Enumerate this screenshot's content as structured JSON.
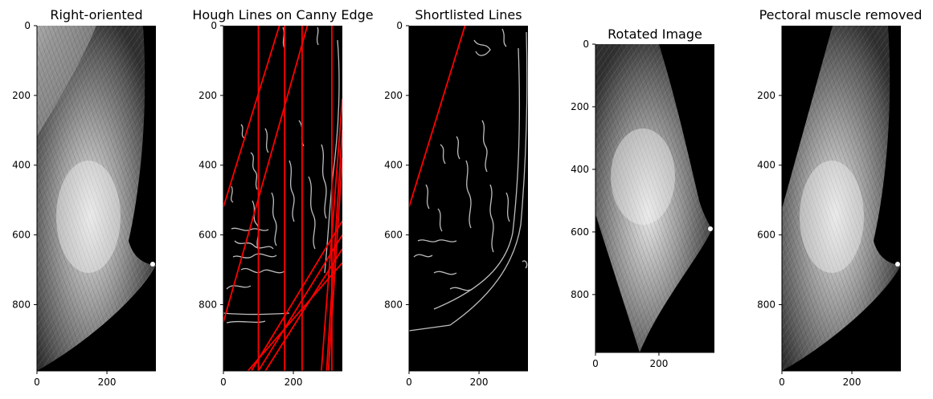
{
  "figure": {
    "panels": [
      {
        "id": "right-oriented",
        "title": "Right-oriented",
        "kind": "mammogram",
        "xlim": [
          0,
          340
        ],
        "ylim": [
          0,
          990
        ],
        "y_ticks": [
          "0",
          "200",
          "400",
          "600",
          "800"
        ],
        "x_ticks": [
          "0",
          "200"
        ]
      },
      {
        "id": "hough",
        "title": "Hough Lines on Canny Edge",
        "kind": "edges-with-lines",
        "xlim": [
          0,
          340
        ],
        "ylim": [
          0,
          990
        ],
        "y_ticks": [
          "0",
          "200",
          "400",
          "600",
          "800"
        ],
        "x_ticks": [
          "0",
          "200"
        ],
        "line_color": "#ff0000",
        "lines": [
          {
            "x1": 0,
            "y1": 520,
            "x2": 160,
            "y2": 0
          },
          {
            "x1": 0,
            "y1": 850,
            "x2": 240,
            "y2": 0
          },
          {
            "x1": 100,
            "y1": 0,
            "x2": 100,
            "y2": 990
          },
          {
            "x1": 175,
            "y1": 0,
            "x2": 175,
            "y2": 990
          },
          {
            "x1": 225,
            "y1": 0,
            "x2": 225,
            "y2": 990
          },
          {
            "x1": 310,
            "y1": 0,
            "x2": 310,
            "y2": 990
          },
          {
            "x1": 80,
            "y1": 990,
            "x2": 340,
            "y2": 560
          },
          {
            "x1": 100,
            "y1": 990,
            "x2": 340,
            "y2": 600
          },
          {
            "x1": 120,
            "y1": 990,
            "x2": 340,
            "y2": 640
          },
          {
            "x1": 70,
            "y1": 990,
            "x2": 340,
            "y2": 680
          },
          {
            "x1": 280,
            "y1": 990,
            "x2": 340,
            "y2": 210
          },
          {
            "x1": 295,
            "y1": 990,
            "x2": 340,
            "y2": 300
          },
          {
            "x1": 300,
            "y1": 990,
            "x2": 340,
            "y2": 380
          }
        ]
      },
      {
        "id": "shortlisted",
        "title": "Shortlisted Lines",
        "kind": "edges-with-lines",
        "xlim": [
          0,
          340
        ],
        "ylim": [
          0,
          990
        ],
        "y_ticks": [
          "0",
          "200",
          "400",
          "600",
          "800"
        ],
        "x_ticks": [
          "0",
          "200"
        ],
        "line_color": "#ff0000",
        "lines": [
          {
            "x1": 0,
            "y1": 520,
            "x2": 160,
            "y2": 0
          }
        ]
      },
      {
        "id": "rotated",
        "title": "Rotated Image",
        "kind": "rotated-mammogram",
        "xlim": [
          0,
          375
        ],
        "ylim": [
          0,
          985
        ],
        "y_ticks": [
          "0",
          "200",
          "400",
          "600",
          "800"
        ],
        "x_ticks": [
          "0",
          "200"
        ]
      },
      {
        "id": "pectoral-removed",
        "title": "Pectoral muscle removed",
        "kind": "mammogram-cropped",
        "xlim": [
          0,
          340
        ],
        "ylim": [
          0,
          990
        ],
        "y_ticks": [
          "200",
          "400",
          "600",
          "800"
        ],
        "x_ticks": [
          "0",
          "200"
        ]
      }
    ]
  }
}
